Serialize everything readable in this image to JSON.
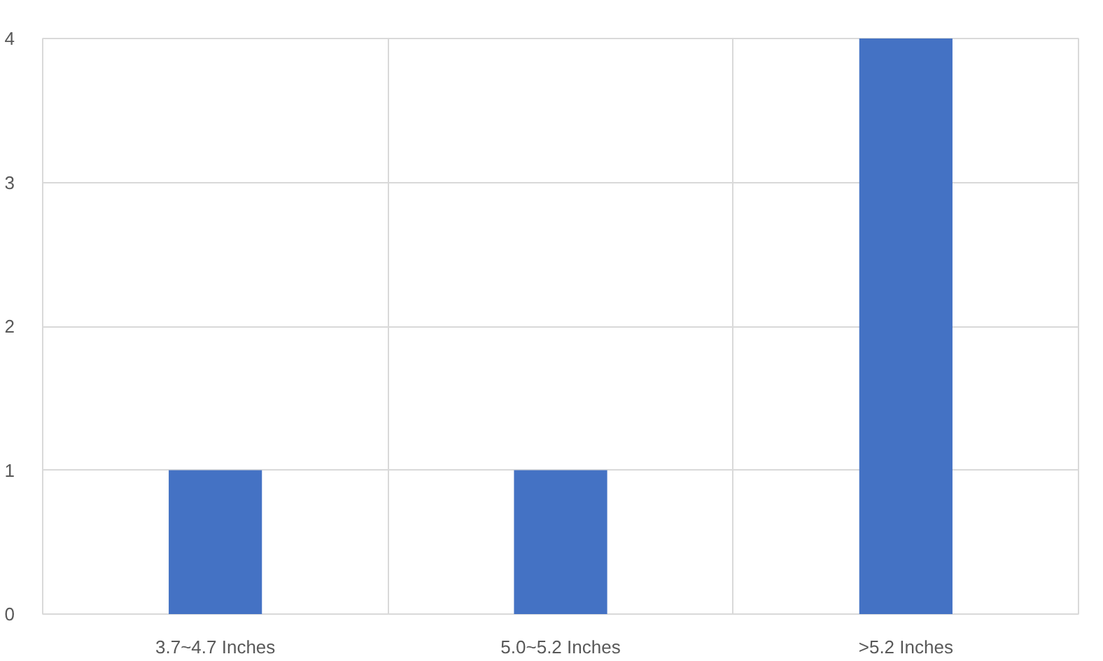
{
  "chart_data": {
    "type": "bar",
    "categories": [
      "3.7~4.7 Inches",
      "5.0~5.2 Inches",
      ">5.2 Inches"
    ],
    "values": [
      1,
      1,
      4
    ],
    "color": "#4472c4",
    "ylim": [
      0,
      4
    ],
    "yticks": [
      0,
      1,
      2,
      3,
      4
    ],
    "grid": true
  }
}
